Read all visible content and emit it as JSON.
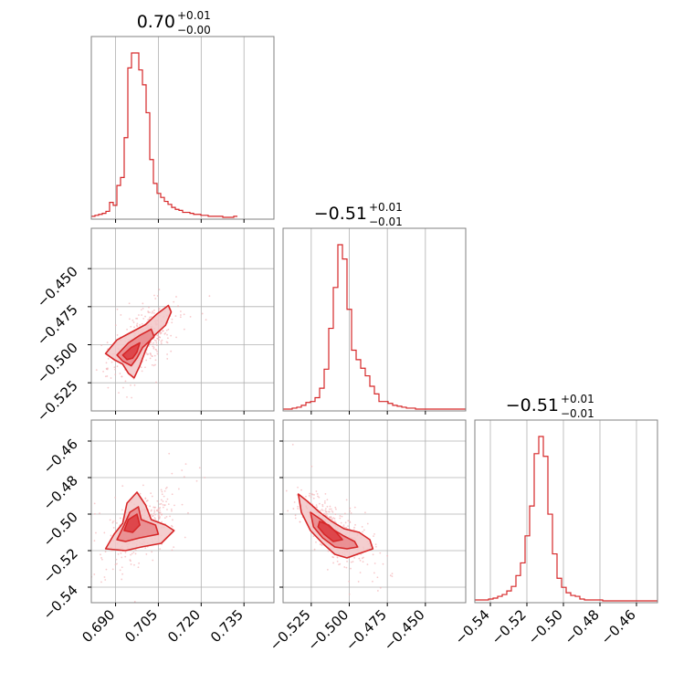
{
  "colors": {
    "main": "#d62728",
    "fill_light": "#f2c6c7",
    "fill_mid": "#e8868a",
    "fill_dark": "#dc3a3e",
    "scatter": "#f3b4b6",
    "grid": "#b0b0b0",
    "frame": "#808080"
  },
  "chart_data": {
    "type": "corner",
    "grid": true,
    "titles": [
      {
        "value": "0.70",
        "plus": "+0.01",
        "minus": "−0.00"
      },
      {
        "value": "−0.51",
        "plus": "+0.01",
        "minus": "−0.01"
      },
      {
        "value": "−0.51",
        "plus": "+0.01",
        "minus": "−0.01"
      }
    ],
    "params": [
      {
        "range": [
          0.6815,
          0.7455
        ],
        "ticks": [
          0.69,
          0.705,
          0.72,
          0.735
        ],
        "tick_labels": [
          "0.690",
          "0.705",
          "0.720",
          "0.735"
        ]
      },
      {
        "range": [
          -0.5435,
          -0.4235
        ],
        "ticks": [
          -0.525,
          -0.5,
          -0.475,
          -0.45
        ],
        "tick_labels": [
          "−0.525",
          "−0.500",
          "−0.475",
          "−0.450"
        ]
      },
      {
        "range": [
          -0.5485,
          -0.4485
        ],
        "ticks": [
          -0.54,
          -0.52,
          -0.5,
          -0.48,
          -0.46
        ],
        "tick_labels": [
          "−0.54",
          "−0.52",
          "−0.50",
          "−0.48",
          "−0.46"
        ]
      }
    ],
    "histograms": [
      {
        "param": 0,
        "bin_edges_start": 0.6815,
        "bin_width": 0.00128,
        "counts": [
          1,
          2,
          3,
          4,
          6,
          15,
          12,
          32,
          40,
          80,
          150,
          165,
          165,
          148,
          133,
          105,
          58,
          34,
          24,
          20,
          16,
          13,
          10,
          8,
          7,
          5,
          5,
          4,
          3,
          3,
          2,
          2,
          1,
          1,
          1,
          1,
          0,
          0,
          0,
          1
        ]
      },
      {
        "param": 1,
        "bin_edges_start": -0.5435,
        "bin_width": 0.003,
        "counts": [
          0,
          0,
          1,
          2,
          4,
          7,
          8,
          12,
          22,
          42,
          85,
          128,
          173,
          158,
          105,
          62,
          52,
          43,
          35,
          24,
          16,
          8,
          8,
          6,
          4,
          3,
          2,
          1,
          1,
          0,
          0,
          0,
          0,
          0,
          0,
          0,
          0,
          0,
          0,
          0
        ]
      },
      {
        "param": 2,
        "bin_edges_start": -0.5485,
        "bin_width": 0.0025,
        "counts": [
          1,
          1,
          1,
          2,
          3,
          5,
          7,
          11,
          16,
          28,
          42,
          72,
          105,
          163,
          182,
          160,
          96,
          52,
          25,
          15,
          9,
          6,
          5,
          2,
          1,
          1,
          1,
          1,
          0,
          0,
          0,
          0,
          0,
          0,
          0,
          0,
          0,
          0,
          0,
          0
        ]
      }
    ],
    "pairs": [
      {
        "x": 0,
        "y": 1,
        "contours": [
          [
            [
              0.6865,
              -0.5058
            ],
            [
              0.6905,
              -0.4968
            ],
            [
              0.6945,
              -0.4928
            ],
            [
              0.7005,
              -0.4868
            ],
            [
              0.7045,
              -0.4798
            ],
            [
              0.7085,
              -0.4742
            ],
            [
              0.7095,
              -0.4785
            ],
            [
              0.7075,
              -0.4872
            ],
            [
              0.7025,
              -0.4958
            ],
            [
              0.7005,
              -0.5038
            ],
            [
              0.6985,
              -0.5138
            ],
            [
              0.6965,
              -0.5218
            ],
            [
              0.6945,
              -0.5188
            ],
            [
              0.6925,
              -0.5128
            ],
            [
              0.6895,
              -0.5098
            ]
          ],
          [
            [
              0.6905,
              -0.5068
            ],
            [
              0.6945,
              -0.4988
            ],
            [
              0.6985,
              -0.4938
            ],
            [
              0.7025,
              -0.4898
            ],
            [
              0.7035,
              -0.4948
            ],
            [
              0.6995,
              -0.5018
            ],
            [
              0.6975,
              -0.5088
            ],
            [
              0.6955,
              -0.5138
            ],
            [
              0.6925,
              -0.5108
            ]
          ],
          [
            [
              0.6925,
              -0.5068
            ],
            [
              0.6955,
              -0.5018
            ],
            [
              0.6985,
              -0.4988
            ],
            [
              0.6975,
              -0.5048
            ],
            [
              0.696,
              -0.5088
            ],
            [
              0.694,
              -0.5098
            ]
          ]
        ]
      },
      {
        "x": 0,
        "y": 2,
        "contours": [
          [
            [
              0.6865,
              -0.519
            ],
            [
              0.6895,
              -0.511
            ],
            [
              0.6925,
              -0.505
            ],
            [
              0.694,
              -0.494
            ],
            [
              0.6975,
              -0.488
            ],
            [
              0.7005,
              -0.495
            ],
            [
              0.7025,
              -0.503
            ],
            [
              0.7075,
              -0.506
            ],
            [
              0.7105,
              -0.509
            ],
            [
              0.706,
              -0.516
            ],
            [
              0.699,
              -0.518
            ],
            [
              0.6935,
              -0.52
            ]
          ],
          [
            [
              0.6905,
              -0.514
            ],
            [
              0.693,
              -0.506
            ],
            [
              0.695,
              -0.499
            ],
            [
              0.698,
              -0.496
            ],
            [
              0.699,
              -0.503
            ],
            [
              0.704,
              -0.506
            ],
            [
              0.705,
              -0.511
            ],
            [
              0.6985,
              -0.513
            ],
            [
              0.6935,
              -0.515
            ]
          ],
          [
            [
              0.693,
              -0.509
            ],
            [
              0.6945,
              -0.503
            ],
            [
              0.6975,
              -0.5
            ],
            [
              0.6985,
              -0.506
            ],
            [
              0.696,
              -0.51
            ]
          ]
        ]
      },
      {
        "x": 1,
        "y": 2,
        "contours": [
          [
            [
              -0.5335,
              -0.489
            ],
            [
              -0.5275,
              -0.493
            ],
            [
              -0.5195,
              -0.499
            ],
            [
              -0.5115,
              -0.504
            ],
            [
              -0.5035,
              -0.508
            ],
            [
              -0.4935,
              -0.51
            ],
            [
              -0.4865,
              -0.514
            ],
            [
              -0.4845,
              -0.519
            ],
            [
              -0.4915,
              -0.521
            ],
            [
              -0.5015,
              -0.524
            ],
            [
              -0.5095,
              -0.522
            ],
            [
              -0.5175,
              -0.516
            ],
            [
              -0.5255,
              -0.509
            ],
            [
              -0.5315,
              -0.499
            ]
          ],
          [
            [
              -0.5255,
              -0.499
            ],
            [
              -0.5185,
              -0.503
            ],
            [
              -0.5115,
              -0.508
            ],
            [
              -0.5035,
              -0.512
            ],
            [
              -0.4965,
              -0.515
            ],
            [
              -0.4945,
              -0.518
            ],
            [
              -0.5015,
              -0.519
            ],
            [
              -0.5095,
              -0.518
            ],
            [
              -0.5175,
              -0.513
            ],
            [
              -0.5235,
              -0.507
            ]
          ],
          [
            [
              -0.5195,
              -0.504
            ],
            [
              -0.5135,
              -0.506
            ],
            [
              -0.5085,
              -0.51
            ],
            [
              -0.5045,
              -0.514
            ],
            [
              -0.5105,
              -0.515
            ],
            [
              -0.5165,
              -0.511
            ],
            [
              -0.5205,
              -0.507
            ]
          ]
        ]
      }
    ]
  }
}
